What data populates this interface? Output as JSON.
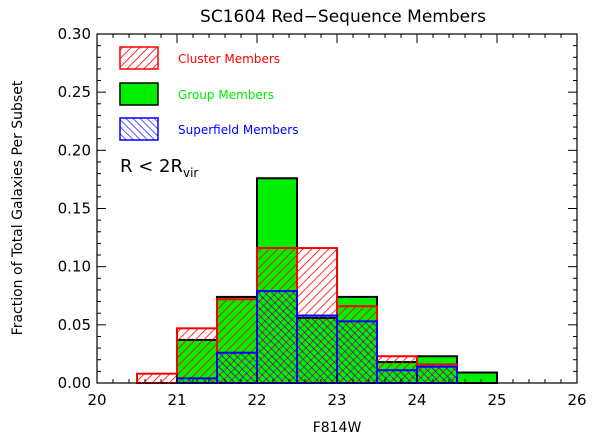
{
  "chart_data": {
    "type": "bar",
    "title": "SC1604 Red−Sequence Members",
    "xlabel": "F814W",
    "ylabel": "Fraction of Total Galaxies Per Subset",
    "xlim": [
      20,
      26
    ],
    "ylim": [
      0.0,
      0.3
    ],
    "xticks": [
      "20",
      "21",
      "22",
      "23",
      "24",
      "25",
      "26"
    ],
    "yticks": [
      "0.00",
      "0.05",
      "0.10",
      "0.15",
      "0.20",
      "0.25",
      "0.30"
    ],
    "bin_edges": [
      20.5,
      21.0,
      21.5,
      22.0,
      22.5,
      23.0,
      23.5,
      24.0,
      24.5,
      25.0
    ],
    "annotation": {
      "text": "R < 2R",
      "subscript": "vir"
    },
    "series": [
      {
        "name": "Group Members",
        "style": "solid",
        "color": "#00ee00",
        "edge": "#000000",
        "values": [
          0.0,
          0.037,
          0.074,
          0.176,
          0.056,
          0.074,
          0.018,
          0.023,
          0.009
        ]
      },
      {
        "name": "Cluster Members",
        "style": "hatch-forward",
        "color": "#ff0000",
        "edge": "#ff0000",
        "values": [
          0.008,
          0.047,
          0.072,
          0.116,
          0.116,
          0.066,
          0.023,
          0.016,
          0.0
        ]
      },
      {
        "name": "Superfield Members",
        "style": "hatch-back",
        "color": "#0000ff",
        "edge": "#0000ff",
        "values": [
          0.0,
          0.004,
          0.026,
          0.079,
          0.058,
          0.053,
          0.011,
          0.014,
          0.0
        ]
      }
    ],
    "legend_order": [
      "Cluster Members",
      "Group Members",
      "Superfield Members"
    ],
    "legend_placement": "top-left",
    "grid": false
  }
}
